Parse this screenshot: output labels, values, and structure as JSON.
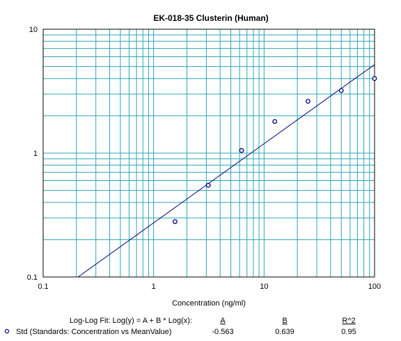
{
  "chart_data": {
    "type": "scatter",
    "title": "EK-018-35 Clusterin (Human)",
    "xlabel": "Concentration (ng/ml)",
    "ylabel": "",
    "x_scale": "log",
    "y_scale": "log",
    "xlim": [
      0.1,
      100
    ],
    "ylim": [
      0.1,
      10
    ],
    "x_ticks": [
      "0.1",
      "1",
      "10",
      "100"
    ],
    "y_ticks": [
      "0.1",
      "1",
      "10"
    ],
    "grid": true,
    "series": [
      {
        "name": "Std (Standards: Concentration vs MeanValue)",
        "x": [
          1.5625,
          3.125,
          6.25,
          12.5,
          25,
          50,
          100
        ],
        "y": [
          0.28,
          0.55,
          1.05,
          1.8,
          2.62,
          3.2,
          4.0
        ]
      }
    ],
    "fit": {
      "equation": "Log-Log Fit: Log(y) = A + B * Log(x):",
      "headers": [
        "A",
        "B",
        "R^2"
      ],
      "values": [
        "-0.563",
        "0.639",
        "0.95"
      ],
      "A": -0.563,
      "B": 0.639
    },
    "colors": {
      "grid": "#2aa6b4",
      "fit_line": "#00007a",
      "marker": "#00007a"
    }
  }
}
